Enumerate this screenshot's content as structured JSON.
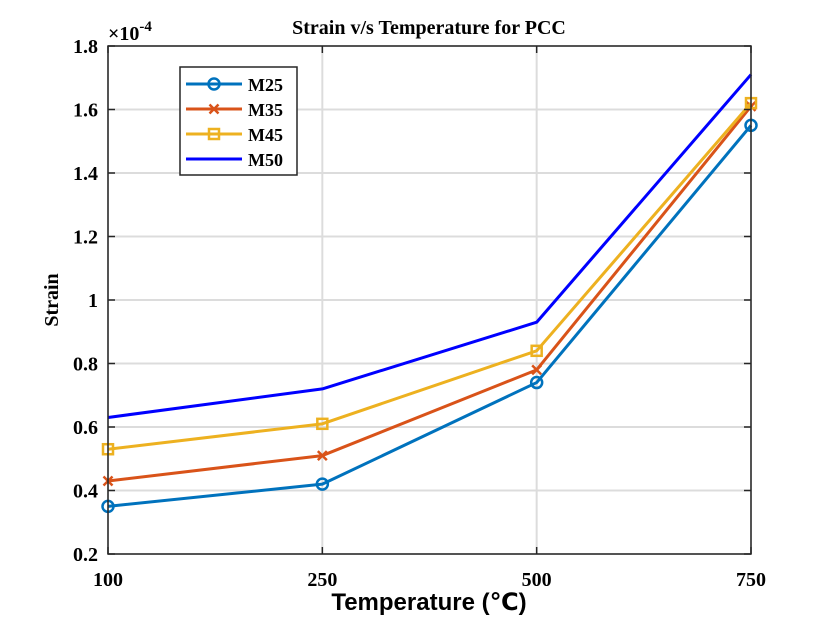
{
  "chart_data": {
    "type": "line",
    "title": "Strain v/s Temperature for PCC",
    "xlabel": "Temperature (℃)",
    "ylabel": "Strain",
    "exponent_base": "×10",
    "exponent_power": "-4",
    "categories": [
      "100",
      "250",
      "500",
      "750"
    ],
    "ylim": [
      0.2,
      1.8
    ],
    "yticks": [
      "0.2",
      "0.4",
      "0.6",
      "0.8",
      "1",
      "1.2",
      "1.4",
      "1.6",
      "1.8"
    ],
    "grid": true,
    "legend_position": "top-left",
    "series": [
      {
        "name": "M25",
        "marker": "circle",
        "color": "#0072BD",
        "values": [
          0.35,
          0.42,
          0.74,
          1.55
        ]
      },
      {
        "name": "M35",
        "marker": "x",
        "color": "#D95319",
        "values": [
          0.43,
          0.51,
          0.78,
          1.61
        ]
      },
      {
        "name": "M45",
        "marker": "square",
        "color": "#EDB120",
        "values": [
          0.53,
          0.61,
          0.84,
          1.62
        ]
      },
      {
        "name": "M50",
        "marker": "none",
        "color": "#0000FF",
        "values": [
          0.63,
          0.72,
          0.93,
          1.71
        ]
      }
    ]
  }
}
